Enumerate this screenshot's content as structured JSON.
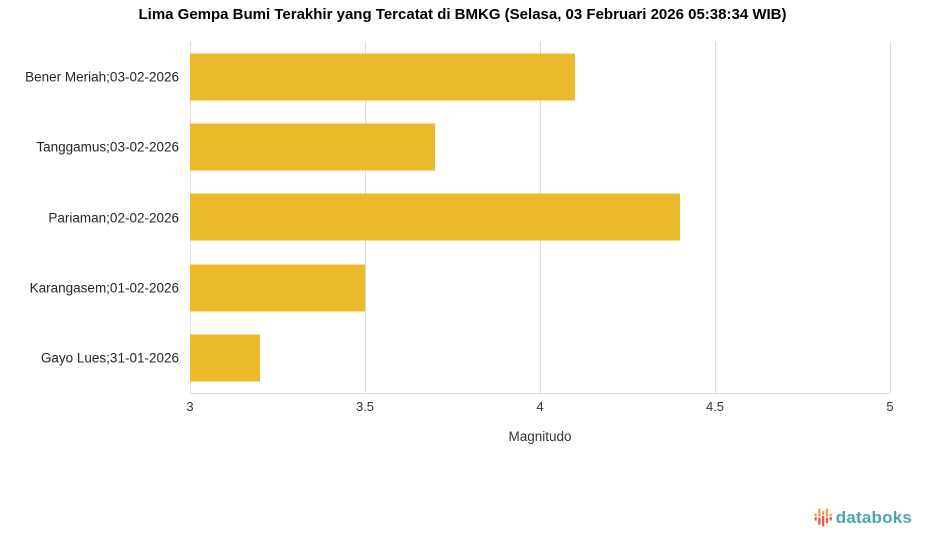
{
  "chart_data": {
    "type": "bar",
    "orientation": "horizontal",
    "title": "Lima Gempa Bumi Terakhir yang Tercatat di BMKG (Selasa, 03 Februari 2026 05:38:34 WIB)",
    "categories": [
      "Bener Meriah;03-02-2026",
      "Tanggamus;03-02-2026",
      "Pariaman;02-02-2026",
      "Karangasem;01-02-2026",
      "Gayo Lues;31-01-2026"
    ],
    "values": [
      4.1,
      3.7,
      4.4,
      3.5,
      3.2
    ],
    "xlabel": "Magnitudo",
    "xlim": [
      3,
      5
    ],
    "xticks": [
      3,
      3.5,
      4,
      4.5,
      5
    ],
    "bar_color": "#ECBB2C",
    "gridline_color": "#DDDDDD",
    "axis_line_color": "#D9D9D9",
    "grid": true,
    "legend": false
  },
  "branding": {
    "name": "databoks",
    "text_color": "#4BA7A7",
    "icon_orange": "#F2994A",
    "icon_red": "#EA5B4F"
  }
}
